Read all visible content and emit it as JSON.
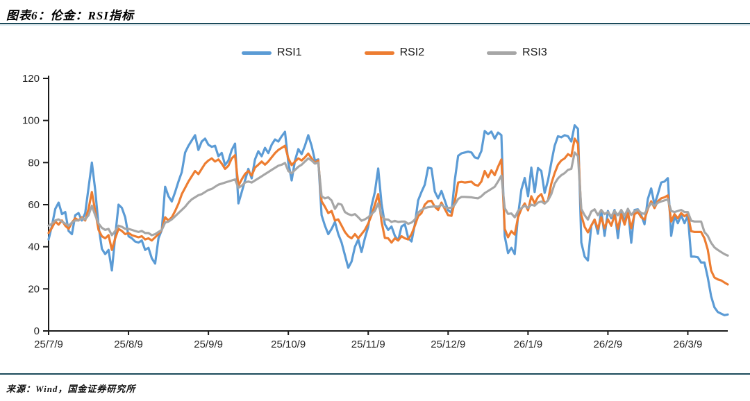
{
  "page": {
    "title": "图表6：伦金：RSI指标",
    "source": "来源：Wind，国金证券研究所",
    "accent_rule_color": "#1B4A5A",
    "accent_rule_light_color": "#D8ECF4",
    "background_color": "#FFFFFF"
  },
  "chart_data": {
    "type": "line",
    "title": "伦金：RSI指标",
    "xlabel": "",
    "ylabel": "",
    "ylim": [
      0,
      120
    ],
    "y_ticks": [
      0,
      20,
      40,
      60,
      80,
      100,
      120
    ],
    "grid": false,
    "legend_position": "top-center",
    "axis_color": "#1a1a1a",
    "label_color": "#262626",
    "x_tick_labels": [
      "25/7/9",
      "25/8/9",
      "25/9/9",
      "25/10/9",
      "25/11/9",
      "25/12/9",
      "26/1/9",
      "26/2/9",
      "26/3/9"
    ],
    "x_tick_indices": [
      0,
      24,
      48,
      72,
      96,
      120,
      144,
      168,
      192
    ],
    "n_points": 205,
    "series": [
      {
        "name": "RSI1",
        "color": "#5B9BD5",
        "values": [
          43.5,
          50,
          58,
          61,
          55.5,
          56.5,
          47.5,
          46,
          55,
          56,
          52.5,
          56,
          68,
          80,
          67,
          50,
          39,
          36.5,
          38.5,
          28.7,
          45,
          60,
          58.5,
          54,
          45,
          44,
          42.5,
          42,
          43,
          38.5,
          39.5,
          34.5,
          32,
          44,
          48,
          68.5,
          64,
          61.5,
          66,
          71,
          75.5,
          84.8,
          88,
          90.5,
          93,
          86,
          90,
          91.4,
          88.5,
          87.5,
          88,
          83,
          84.6,
          78.8,
          81,
          86,
          89,
          60.6,
          66,
          71.6,
          77,
          72.5,
          81.5,
          85.4,
          83,
          87,
          84.5,
          88.5,
          91,
          90,
          92.5,
          94.6,
          80,
          71.5,
          81,
          86.4,
          84,
          88,
          93,
          88,
          81,
          81.5,
          55,
          50,
          46,
          48.5,
          51.8,
          46,
          42,
          36,
          30,
          33,
          40,
          43.5,
          37.5,
          44,
          49.5,
          59.4,
          66,
          77.2,
          60.6,
          50.7,
          48,
          49.6,
          45.2,
          43,
          49.6,
          50.7,
          44.2,
          42.5,
          50.7,
          62,
          66,
          69.5,
          77.6,
          77.2,
          66.2,
          63,
          66.5,
          62,
          57.3,
          56.2,
          71.6,
          83.2,
          84.4,
          84.8,
          85.2,
          84.8,
          82.5,
          82,
          85.5,
          95,
          93.5,
          94.7,
          91.4,
          94.3,
          93,
          45,
          37,
          39.5,
          36.5,
          55,
          67.2,
          72.7,
          64,
          77.6,
          66,
          77.4,
          76,
          65.6,
          71.5,
          80,
          88,
          92.5,
          92,
          93,
          92.5,
          90,
          97.7,
          96,
          42,
          35.3,
          33.5,
          50,
          52.9,
          46.2,
          57.3,
          45.2,
          57,
          53.5,
          57.5,
          44.1,
          57.3,
          51.8,
          58,
          41.9,
          57.5,
          57.8,
          55,
          50.7,
          62.7,
          67.7,
          60,
          65,
          70.5,
          71,
          72.6,
          45.2,
          54.5,
          51.2,
          55,
          51.2,
          55,
          35.3,
          35.3,
          35,
          32.5,
          32.5,
          25.4,
          16.5,
          11.2,
          9,
          8.2,
          7.5,
          7.8
        ]
      },
      {
        "name": "RSI2",
        "color": "#ED7D31",
        "values": [
          46.5,
          49,
          52,
          50.5,
          52.5,
          50,
          48.5,
          51.5,
          53.5,
          52.5,
          54,
          52.5,
          58,
          66,
          57,
          48,
          45,
          44,
          45.5,
          38.5,
          44,
          48.5,
          47.5,
          46,
          46.5,
          45.5,
          45,
          44.5,
          45,
          43.5,
          44,
          43,
          44.5,
          46,
          48,
          54,
          52.5,
          54,
          57,
          60.5,
          65,
          68,
          71,
          73.5,
          76,
          74.5,
          77,
          79.5,
          81,
          82,
          80.5,
          81.5,
          79.5,
          77,
          78.5,
          82,
          83.5,
          69,
          72,
          74.6,
          76,
          73.8,
          77.6,
          79,
          80.5,
          79,
          80.5,
          82.5,
          84.5,
          86,
          87,
          88,
          82,
          78.8,
          80.5,
          82,
          81,
          82.5,
          84.3,
          82,
          79.8,
          81,
          61.6,
          59,
          56,
          57,
          52.5,
          53,
          50,
          47,
          45,
          44,
          46,
          44,
          46,
          48,
          51,
          55,
          60,
          65,
          52,
          44.2,
          44,
          42,
          44,
          43,
          45,
          44,
          43.5,
          46,
          50,
          54.5,
          56,
          60,
          61.6,
          61.8,
          59,
          57.5,
          61,
          58,
          55,
          54.7,
          61.6,
          70.5,
          70.8,
          70.5,
          70.7,
          70.9,
          69.5,
          69,
          71,
          76,
          73,
          76.3,
          74,
          78,
          81.5,
          48.5,
          44.5,
          47.4,
          45.8,
          54,
          58,
          60.6,
          57.3,
          64,
          60.6,
          63.7,
          65,
          60.6,
          62,
          70,
          75,
          79,
          81,
          82,
          84,
          83,
          91.4,
          89,
          55,
          49.5,
          46.8,
          50,
          52.9,
          48.5,
          54,
          48.8,
          53,
          50,
          55,
          48.5,
          55.5,
          50.5,
          56,
          48.8,
          55.5,
          56.5,
          54,
          52.9,
          58,
          61.6,
          58.4,
          61.6,
          63,
          63.5,
          64.4,
          52,
          55.5,
          53.5,
          56,
          54.5,
          55.6,
          47.4,
          47,
          47,
          47,
          44,
          38.6,
          28.7,
          25.4,
          24.5,
          24,
          23,
          22.1
        ]
      },
      {
        "name": "RSI3",
        "color": "#A6A6A6",
        "values": [
          50,
          51,
          52.5,
          53,
          52,
          51,
          50,
          51.5,
          52.5,
          52.5,
          53.5,
          53,
          55,
          59.5,
          55,
          51,
          49,
          48,
          48.5,
          45.5,
          47.5,
          50,
          49.5,
          48.5,
          48.5,
          48,
          47.5,
          47,
          47.5,
          46.5,
          46.5,
          45.5,
          46,
          47,
          48,
          51.5,
          52,
          53,
          54.5,
          56,
          57.5,
          59,
          61,
          62.5,
          63.5,
          64.5,
          65,
          66,
          67,
          67.5,
          68.5,
          69.5,
          70,
          70.5,
          71,
          71.5,
          72,
          68,
          69,
          70.5,
          71,
          70.5,
          71.5,
          72.5,
          73.5,
          74.5,
          75.5,
          76.5,
          77.5,
          78.5,
          79,
          79.8,
          76,
          74.9,
          76.5,
          78,
          79,
          80.5,
          82,
          81,
          79.5,
          80,
          64,
          63,
          63.5,
          62,
          58,
          60.5,
          60,
          56.5,
          55.5,
          55,
          55.5,
          54,
          52.4,
          53,
          54,
          55.5,
          57,
          60.6,
          55,
          53,
          52.9,
          51.8,
          52.3,
          51.8,
          52,
          52,
          50.9,
          51.5,
          52.9,
          56.2,
          57.5,
          58.4,
          58.8,
          59,
          59.2,
          59,
          60,
          58.8,
          58.4,
          58.6,
          60,
          62.7,
          63.7,
          63.7,
          63.6,
          63.5,
          63.2,
          63,
          64,
          65.5,
          66.5,
          67.5,
          68.5,
          71,
          73.8,
          58.4,
          55.6,
          55.8,
          54,
          57,
          58.4,
          59.5,
          58.5,
          60,
          59.5,
          61,
          61.5,
          60.5,
          62,
          65,
          70,
          72.5,
          74,
          75,
          76.5,
          77,
          84.8,
          83,
          58,
          55,
          52.9,
          56.7,
          57.8,
          55,
          57.5,
          55.5,
          56.5,
          54.5,
          57,
          55,
          57.5,
          54.8,
          58,
          55.1,
          57,
          57.5,
          56,
          55.6,
          58.5,
          60.6,
          59.5,
          60.9,
          61.5,
          62,
          62.5,
          57,
          56.5,
          57,
          57.5,
          56.5,
          56.5,
          52.4,
          52,
          52,
          52,
          47,
          45.2,
          41.9,
          39.7,
          38.5,
          37.5,
          36.5,
          35.8
        ]
      }
    ]
  }
}
